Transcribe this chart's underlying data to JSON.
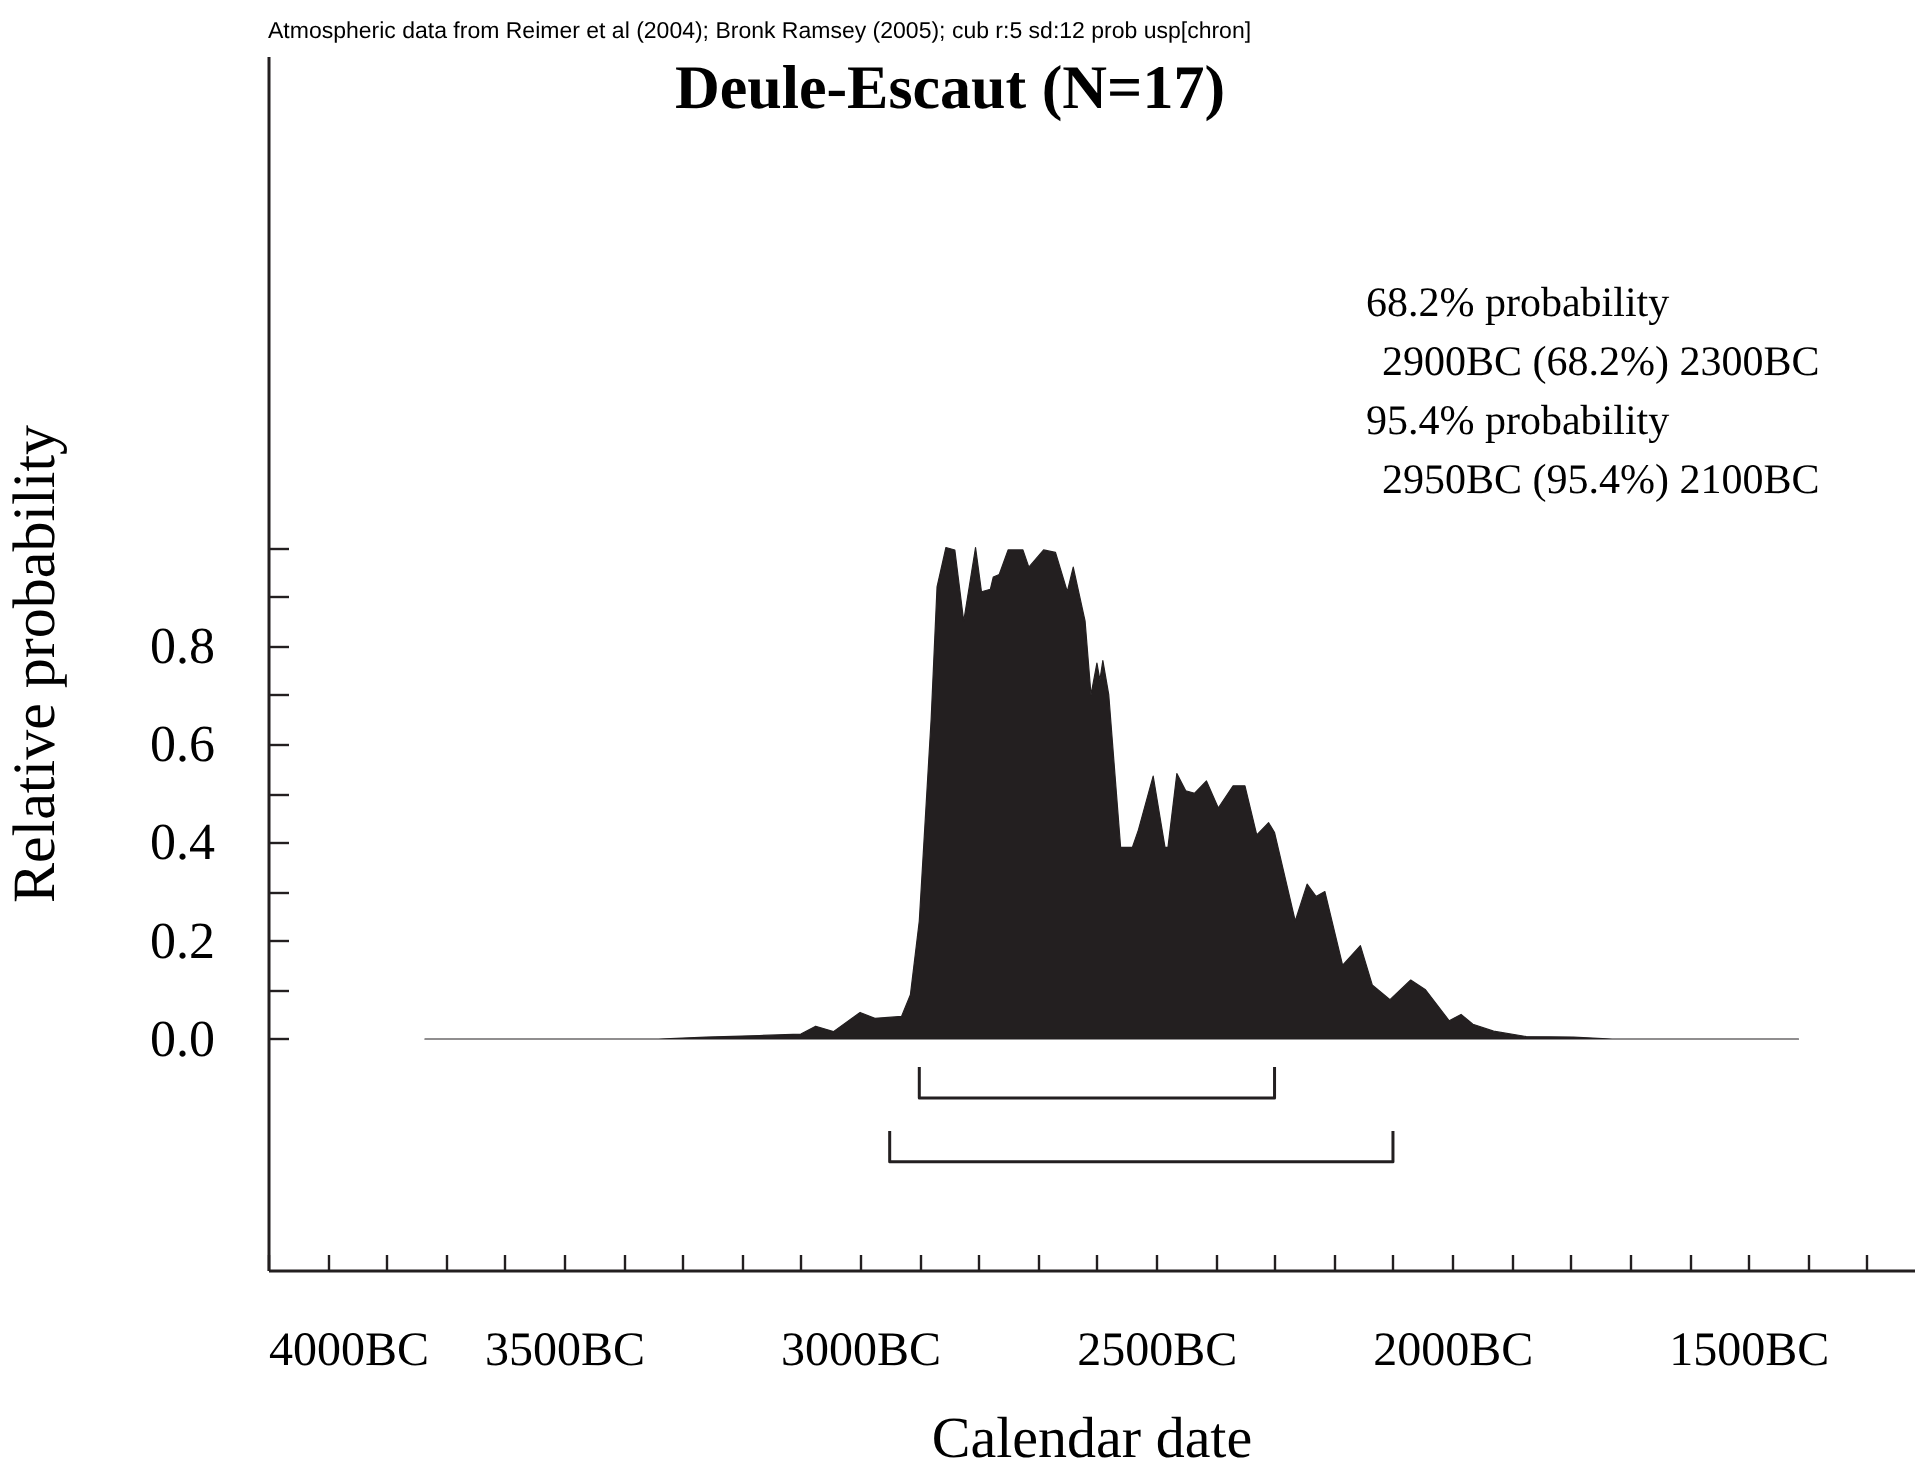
{
  "chart_data": {
    "type": "area",
    "title": "Deule-Escaut (N=17)",
    "xlabel": "Calendar date",
    "ylabel": "Relative probability",
    "annotations": [
      "Atmospheric data from Reimer et al (2004); Bronk Ramsey (2005); cub r:5 sd:12 prob usp[chron]",
      "68.2% probability",
      "2900BC (68.2%) 2300BC",
      "95.4% probability",
      "2950BC (95.4%) 2100BC"
    ],
    "xlim": [
      -4000,
      -1220
    ],
    "ylim": [
      -0.47,
      2.0
    ],
    "xticks": [
      {
        "value": -4000,
        "label": "4000BC"
      },
      {
        "value": -3900,
        "label": null
      },
      {
        "value": -3800,
        "label": null
      },
      {
        "value": -3700,
        "label": null
      },
      {
        "value": -3600,
        "label": null
      },
      {
        "value": -3500,
        "label": "3500BC"
      },
      {
        "value": -3400,
        "label": null
      },
      {
        "value": -3300,
        "label": null
      },
      {
        "value": -3200,
        "label": null
      },
      {
        "value": -3100,
        "label": null
      },
      {
        "value": -3000,
        "label": "3000BC"
      },
      {
        "value": -2900,
        "label": null
      },
      {
        "value": -2800,
        "label": null
      },
      {
        "value": -2700,
        "label": null
      },
      {
        "value": -2600,
        "label": null
      },
      {
        "value": -2500,
        "label": "2500BC"
      },
      {
        "value": -2400,
        "label": null
      },
      {
        "value": -2300,
        "label": null
      },
      {
        "value": -2200,
        "label": null
      },
      {
        "value": -2100,
        "label": null
      },
      {
        "value": -2000,
        "label": "2000BC"
      },
      {
        "value": -1900,
        "label": null
      },
      {
        "value": -1800,
        "label": null
      },
      {
        "value": -1700,
        "label": null
      },
      {
        "value": -1600,
        "label": null
      },
      {
        "value": -1500,
        "label": "1500BC"
      },
      {
        "value": -1400,
        "label": null
      },
      {
        "value": -1300,
        "label": null
      }
    ],
    "yticks": [
      {
        "value": 0,
        "label": "0.0"
      },
      {
        "value": 0.1,
        "label": null
      },
      {
        "value": 0.2,
        "label": "0.2"
      },
      {
        "value": 0.3,
        "label": null
      },
      {
        "value": 0.4,
        "label": "0.4"
      },
      {
        "value": 0.5,
        "label": null
      },
      {
        "value": 0.6,
        "label": "0.6"
      },
      {
        "value": 0.7,
        "label": null
      },
      {
        "value": 0.8,
        "label": "0.8"
      },
      {
        "value": 0.9,
        "label": null
      },
      {
        "value": 1.0,
        "label": null
      }
    ],
    "series": [
      {
        "type": "area",
        "color": "#231f20",
        "x": [
          -3735,
          -3340,
          -3260,
          -3170,
          -3100,
          -3075,
          -3045,
          -3000,
          -2975,
          -2930,
          -2915,
          -2900,
          -2880,
          -2870,
          -2855,
          -2840,
          -2825,
          -2805,
          -2795,
          -2780,
          -2775,
          -2765,
          -2750,
          -2725,
          -2715,
          -2690,
          -2670,
          -2650,
          -2640,
          -2620,
          -2610,
          -2600,
          -2595,
          -2590,
          -2580,
          -2560,
          -2540,
          -2530,
          -2505,
          -2485,
          -2480,
          -2465,
          -2450,
          -2435,
          -2415,
          -2395,
          -2370,
          -2350,
          -2330,
          -2310,
          -2300,
          -2265,
          -2245,
          -2230,
          -2215,
          -2185,
          -2155,
          -2135,
          -2105,
          -2070,
          -2045,
          -2005,
          -1985,
          -1965,
          -1930,
          -1875,
          -1795,
          -1730,
          -1415
        ],
        "values": [
          0,
          0,
          0.004,
          0.007,
          0.01,
          0.026,
          0.015,
          0.054,
          0.042,
          0.046,
          0.09,
          0.24,
          0.65,
          0.92,
          1.0,
          0.995,
          0.85,
          1.0,
          0.91,
          0.915,
          0.94,
          0.945,
          0.995,
          0.995,
          0.96,
          0.995,
          0.99,
          0.91,
          0.96,
          0.85,
          0.7,
          0.765,
          0.73,
          0.77,
          0.7,
          0.39,
          0.39,
          0.425,
          0.535,
          0.39,
          0.39,
          0.54,
          0.505,
          0.5,
          0.525,
          0.47,
          0.515,
          0.515,
          0.415,
          0.44,
          0.42,
          0.24,
          0.315,
          0.29,
          0.3,
          0.15,
          0.19,
          0.11,
          0.08,
          0.12,
          0.1,
          0.037,
          0.05,
          0.03,
          0.016,
          0.005,
          0.004,
          0,
          0
        ]
      },
      {
        "type": "line",
        "color": "#231f20",
        "x": [
          -2900,
          -2900,
          -2300,
          -2300
        ],
        "values": [
          -0.06,
          -0.12,
          -0.12,
          -0.06
        ]
      },
      {
        "type": "line",
        "color": "#231f20",
        "x": [
          -2950,
          -2950,
          -2100,
          -2100
        ],
        "values": [
          -0.19,
          -0.25,
          -0.25,
          -0.19
        ]
      }
    ]
  }
}
